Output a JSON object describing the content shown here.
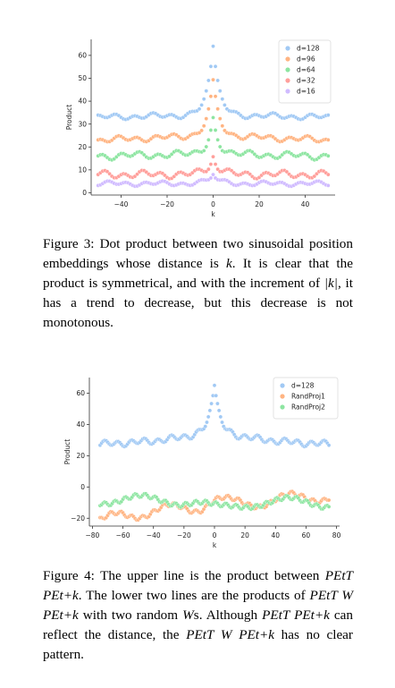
{
  "figure3": {
    "caption": {
      "prefix": "Figure 3:",
      "text_a": "Dot product between two sinusoidal position embeddings whose distance is ",
      "math_k": "k",
      "text_b": ". It is clear that the product is symmetrical, and with the increment of ",
      "math_abs_k": "|k|",
      "text_c": ", it has a trend to decrease, but this decrease is not monotonous."
    },
    "chart_data": {
      "type": "scatter",
      "xlabel": "k",
      "ylabel": "Product",
      "xlim": [
        -53,
        53
      ],
      "ylim": [
        -1,
        67
      ],
      "xticks": [
        -40,
        -20,
        0,
        20,
        40
      ],
      "yticks": [
        0,
        10,
        20,
        30,
        40,
        50,
        60
      ],
      "legend_position": "top-right",
      "x_range": [
        -50,
        50
      ],
      "series": [
        {
          "name": "d=128",
          "color": "#a1c9f4",
          "peak": 64,
          "base": 34,
          "edge": 33,
          "wiggle": 1.2
        },
        {
          "name": "d=96",
          "color": "#ffb482",
          "peak": 48,
          "base": 25,
          "edge": 23,
          "wiggle": 1.3
        },
        {
          "name": "d=64",
          "color": "#8de5a1",
          "peak": 32,
          "base": 17,
          "edge": 16,
          "wiggle": 1.5
        },
        {
          "name": "d=32",
          "color": "#ff9f9b",
          "peak": 16,
          "base": 8,
          "edge": 8,
          "wiggle": 1.6
        },
        {
          "name": "d=16",
          "color": "#d0bbff",
          "peak": 8,
          "base": 4,
          "edge": 4,
          "wiggle": 1.0
        }
      ]
    }
  },
  "figure4": {
    "caption": {
      "prefix": "Figure 4:",
      "text_a": "The upper line is the product between ",
      "math_1": "PEtT PEt+k",
      "text_b": ". The lower two lines are the products of ",
      "math_2": "PEtT W PEt+k",
      "text_c": " with two random ",
      "math_w": "W",
      "text_d": "s. Although ",
      "math_3": "PEtT PEt+k",
      "text_e": " can reflect the distance, the ",
      "math_4": "PEtT W PEt+k",
      "text_f": " has no clear pattern."
    },
    "chart_data": {
      "type": "scatter",
      "xlabel": "k",
      "ylabel": "Product",
      "xlim": [
        -82,
        82
      ],
      "ylim": [
        -25,
        70
      ],
      "xticks": [
        -80,
        -60,
        -40,
        -20,
        0,
        20,
        40,
        60,
        80
      ],
      "yticks": [
        -20,
        0,
        20,
        40,
        60
      ],
      "legend_position": "top-right",
      "x_range": [
        -75,
        75
      ],
      "series": [
        {
          "name": "d=128",
          "color": "#a1c9f4"
        },
        {
          "name": "RandProj1",
          "color": "#ffb482"
        },
        {
          "name": "RandProj2",
          "color": "#8de5a1"
        }
      ]
    }
  }
}
